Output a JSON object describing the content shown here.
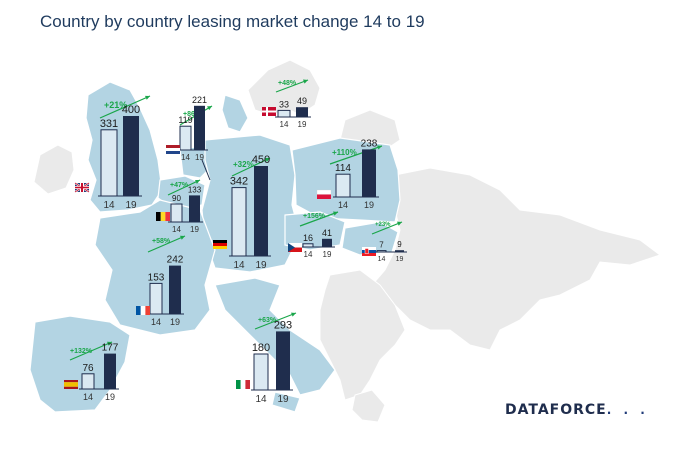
{
  "title": "Country by country leasing market change 14 to 19",
  "logo": {
    "text": "DATAFORCE",
    "dots": ". . ."
  },
  "colors": {
    "sea": "#ffffff",
    "highlight_land": "#b3d4e3",
    "other_land": "#eaeaea",
    "bar_14_fill": "#dbe9f2",
    "bar_14_stroke": "#1f2d4d",
    "bar_19_fill": "#1f2d4d",
    "pct_color": "#1aa64a"
  },
  "chart_data": {
    "type": "bar",
    "categories": [
      "14",
      "19"
    ],
    "countries": [
      {
        "id": "uk",
        "values": [
          331,
          400
        ],
        "change": "+21%",
        "flag": "uk-flag-icon"
      },
      {
        "id": "netherlands",
        "values": [
          119,
          221
        ],
        "change": "+86%",
        "flag": "netherlands-flag-icon"
      },
      {
        "id": "denmark",
        "values": [
          33,
          49
        ],
        "change": "+48%",
        "flag": "denmark-flag-icon"
      },
      {
        "id": "belgium",
        "values": [
          90,
          133
        ],
        "change": "+47%",
        "flag": "belgium-flag-icon"
      },
      {
        "id": "germany",
        "values": [
          342,
          450
        ],
        "change": "+32%",
        "flag": "germany-flag-icon"
      },
      {
        "id": "poland",
        "values": [
          114,
          238
        ],
        "change": "+110%",
        "flag": "poland-flag-icon"
      },
      {
        "id": "czech",
        "values": [
          16,
          41
        ],
        "change": "+156%",
        "flag": "czech-flag-icon"
      },
      {
        "id": "slovakia",
        "values": [
          7,
          9
        ],
        "change": "+23%",
        "flag": "slovakia-flag-icon"
      },
      {
        "id": "france",
        "values": [
          153,
          242
        ],
        "change": "+58%",
        "flag": "france-flag-icon"
      },
      {
        "id": "italy",
        "values": [
          180,
          293
        ],
        "change": "+63%",
        "flag": "italy-flag-icon"
      },
      {
        "id": "spain",
        "values": [
          76,
          177
        ],
        "change": "+132%",
        "flag": "spain-flag-icon"
      }
    ]
  }
}
